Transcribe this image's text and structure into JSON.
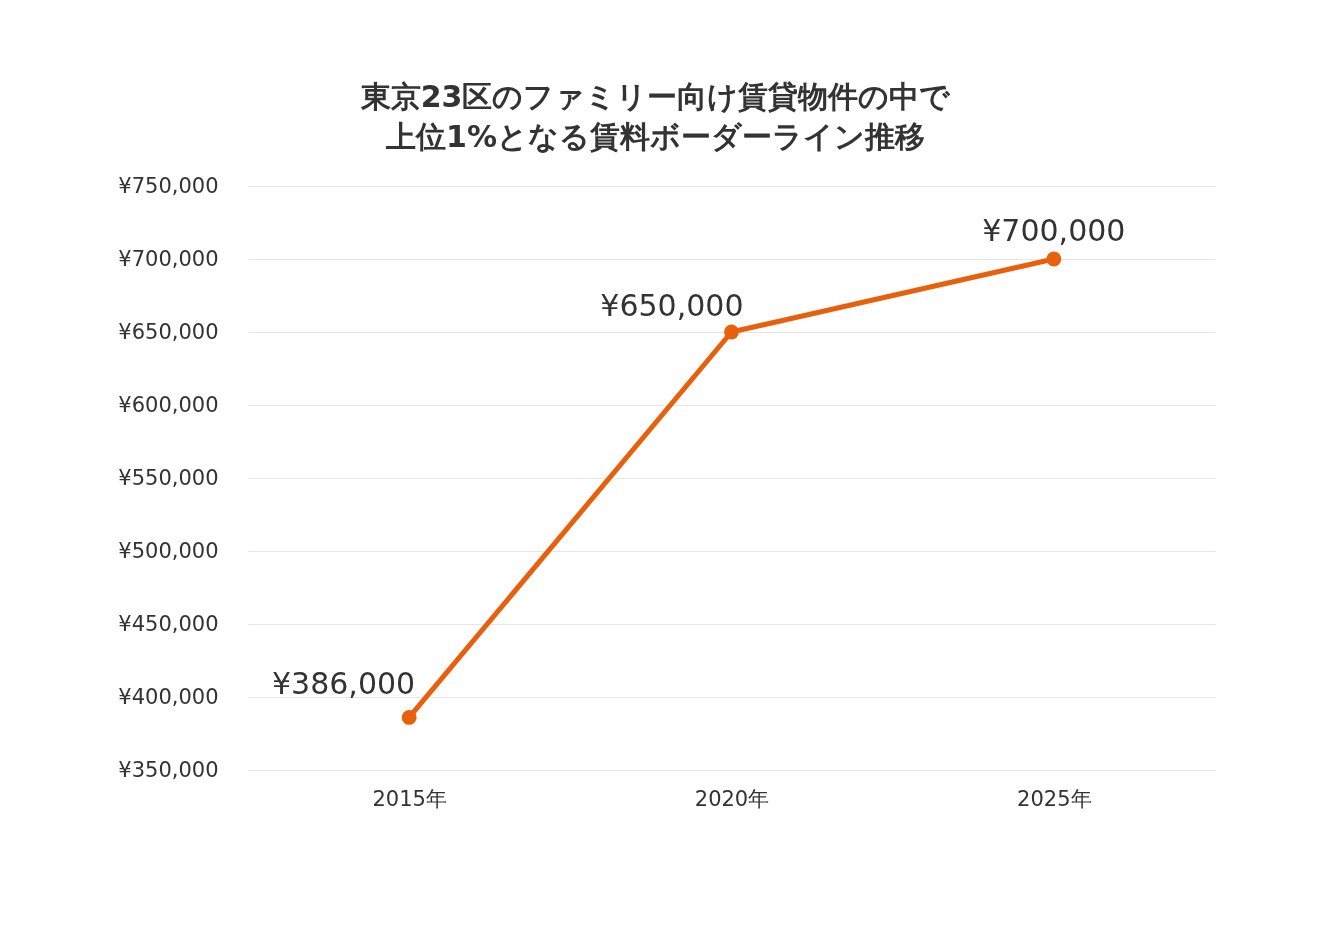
{
  "chart_data": {
    "type": "line",
    "title": "東京23区のファミリー向け賃貸物件の中で上位1%となる賃料ボーダーライン推移",
    "categories": [
      "2015年",
      "2020年",
      "2025年"
    ],
    "series": [
      {
        "color": "#e8600c",
        "values": [
          386000,
          650000,
          700000
        ],
        "value_labels": [
          "¥386,000",
          "¥650,000",
          "¥700,000"
        ]
      }
    ],
    "ylim": [
      350000,
      750000
    ],
    "yticks": [
      {
        "value": 350000,
        "label": "¥350,000"
      },
      {
        "value": 400000,
        "label": "¥400,000"
      },
      {
        "value": 450000,
        "label": "¥450,000"
      },
      {
        "value": 500000,
        "label": "¥500,000"
      },
      {
        "value": 550000,
        "label": "¥550,000"
      },
      {
        "value": 600000,
        "label": "¥600,000"
      },
      {
        "value": 650000,
        "label": "¥650,000"
      },
      {
        "value": 700000,
        "label": "¥700,000"
      },
      {
        "value": 750000,
        "label": "¥750,000"
      }
    ],
    "grid": "y",
    "marker": "circle",
    "line_style": "solid"
  }
}
